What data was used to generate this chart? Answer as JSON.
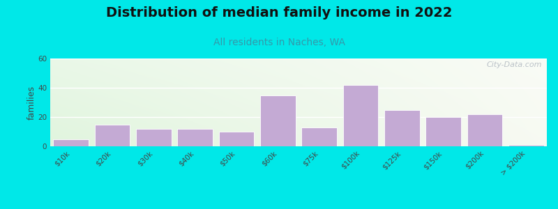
{
  "title": "Distribution of median family income in 2022",
  "subtitle": "All residents in Naches, WA",
  "categories": [
    "$10k",
    "$20k",
    "$30k",
    "$40k",
    "$50k",
    "$60k",
    "$75k",
    "$100k",
    "$125k",
    "$150k",
    "$200k",
    "> $200k"
  ],
  "values": [
    5,
    15,
    12,
    12,
    10,
    35,
    13,
    42,
    25,
    20,
    22,
    1
  ],
  "bar_color": "#c4aad4",
  "bar_edgecolor": "#ffffff",
  "background_outer": "#00e8e8",
  "ylim": [
    0,
    60
  ],
  "yticks": [
    0,
    20,
    40,
    60
  ],
  "ylabel": "families",
  "title_fontsize": 14,
  "title_fontweight": "bold",
  "subtitle_fontsize": 10,
  "subtitle_color": "#3399aa",
  "watermark": "City-Data.com",
  "tick_fontsize": 7.5,
  "ylabel_fontsize": 9
}
